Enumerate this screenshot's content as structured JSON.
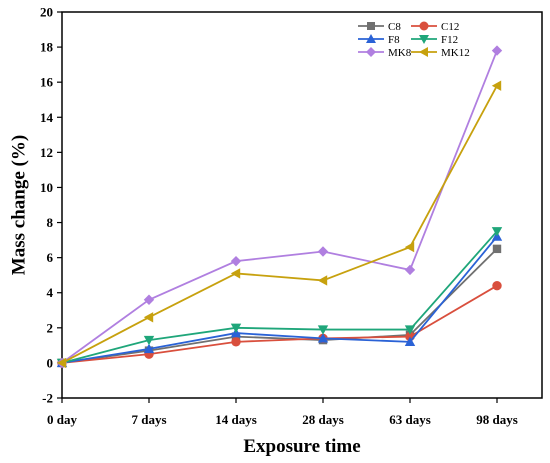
{
  "chart_data": {
    "type": "line",
    "title": "",
    "xlabel": "Exposure time",
    "ylabel": "Mass change (%)",
    "categories": [
      "0 day",
      "7 days",
      "14 days",
      "28 days",
      "63 days",
      "98 days"
    ],
    "ylim": [
      -2,
      20
    ],
    "yticks": [
      "-2",
      "0",
      "2",
      "4",
      "6",
      "8",
      "10",
      "12",
      "14",
      "16",
      "18",
      "20"
    ],
    "legend_position": "top-right",
    "series": [
      {
        "name": "C8",
        "color": "#707070",
        "marker": "square",
        "values": [
          0,
          0.7,
          1.5,
          1.3,
          1.6,
          6.5
        ]
      },
      {
        "name": "C12",
        "color": "#d94f3d",
        "marker": "circle",
        "values": [
          0,
          0.5,
          1.2,
          1.4,
          1.5,
          4.4
        ]
      },
      {
        "name": "F8",
        "color": "#2a62d6",
        "marker": "triangle-up",
        "values": [
          0,
          0.8,
          1.7,
          1.4,
          1.2,
          7.2
        ]
      },
      {
        "name": "F12",
        "color": "#1fa67a",
        "marker": "triangle-down",
        "values": [
          0,
          1.3,
          2.0,
          1.9,
          1.9,
          7.5
        ]
      },
      {
        "name": "MK8",
        "color": "#b07fe0",
        "marker": "diamond",
        "values": [
          0,
          3.6,
          5.8,
          6.35,
          5.3,
          17.8
        ]
      },
      {
        "name": "MK12",
        "color": "#c7a10e",
        "marker": "triangle-left",
        "values": [
          0,
          2.6,
          5.1,
          4.7,
          6.6,
          15.8
        ]
      }
    ]
  }
}
